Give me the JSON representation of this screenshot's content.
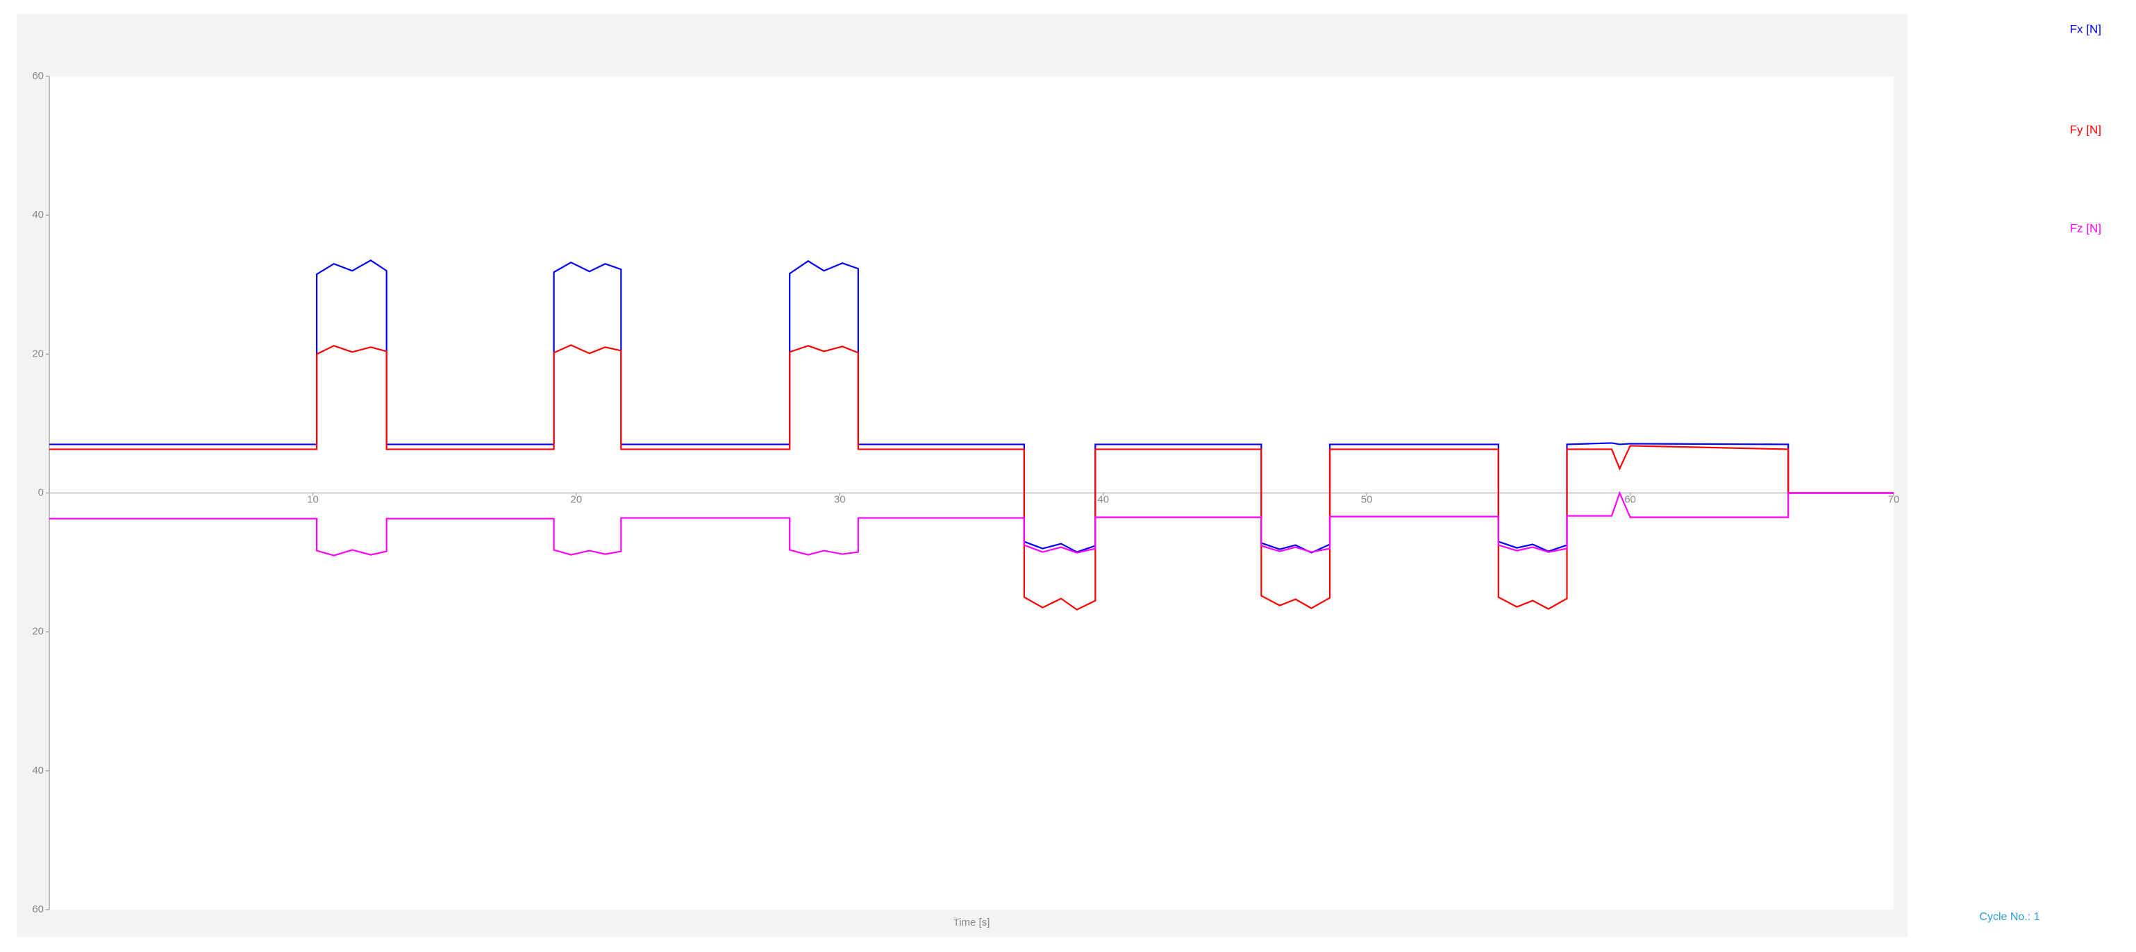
{
  "chart_data": {
    "type": "line",
    "xlabel": "Time [s]",
    "annotation": "Cycle No.: 1",
    "x": [
      0,
      10.15,
      10.15,
      10.8,
      11.5,
      12.2,
      12.8,
      12.8,
      19.15,
      19.15,
      19.8,
      20.5,
      21.1,
      21.7,
      21.7,
      28.1,
      28.1,
      28.8,
      29.4,
      30.1,
      30.7,
      30.7,
      37.0,
      37.0,
      37.7,
      38.4,
      39.0,
      39.7,
      39.7,
      46.0,
      46.0,
      46.7,
      47.3,
      47.9,
      48.6,
      48.6,
      55.0,
      55.0,
      55.7,
      56.3,
      56.9,
      57.6,
      57.6,
      59.3,
      59.6,
      60.0,
      66.0,
      66.0,
      70
    ],
    "series": [
      {
        "name": "Fx [N]",
        "color": "#0000ff",
        "values": [
          7,
          7,
          31.5,
          33,
          32,
          33.5,
          32,
          7,
          7,
          31.8,
          33.2,
          31.9,
          33,
          32.2,
          7,
          7,
          31.6,
          33.4,
          32,
          33.1,
          32.3,
          7,
          7,
          -7,
          -8,
          -7.3,
          -8.5,
          -7.6,
          7,
          7,
          -7.2,
          -8.1,
          -7.5,
          -8.6,
          -7.4,
          7,
          7,
          -7,
          -7.9,
          -7.4,
          -8.4,
          -7.5,
          7,
          7.2,
          7,
          7.1,
          7,
          0,
          0
        ]
      },
      {
        "name": "Fy [N]",
        "color": "#ff0000",
        "values": [
          6.3,
          6.3,
          20,
          21.2,
          20.3,
          21,
          20.4,
          6.3,
          6.3,
          20.2,
          21.3,
          20.1,
          21,
          20.5,
          6.3,
          6.3,
          20.3,
          21.2,
          20.4,
          21.1,
          20.2,
          6.3,
          6.3,
          -15,
          -16.5,
          -15.2,
          -16.8,
          -15.5,
          6.3,
          6.3,
          -14.8,
          -16.2,
          -15.3,
          -16.6,
          -15.1,
          6.3,
          6.3,
          -15,
          -16.4,
          -15.5,
          -16.7,
          -15.2,
          6.3,
          6.3,
          3.5,
          6.8,
          6.3,
          0,
          0
        ]
      },
      {
        "name": "Fz [N]",
        "color": "#ff00ff",
        "values": [
          -3.7,
          -3.7,
          -8.3,
          -9,
          -8.2,
          -8.9,
          -8.4,
          -3.7,
          -3.7,
          -8.2,
          -8.9,
          -8.3,
          -8.8,
          -8.4,
          -3.6,
          -3.6,
          -8.2,
          -8.9,
          -8.3,
          -8.8,
          -8.5,
          -3.6,
          -3.6,
          -7.5,
          -8.5,
          -7.8,
          -8.6,
          -8,
          -3.5,
          -3.5,
          -7.6,
          -8.4,
          -7.8,
          -8.5,
          -8,
          -3.4,
          -3.4,
          -7.5,
          -8.3,
          -7.8,
          -8.5,
          -8,
          -3.3,
          -3.3,
          0,
          -3.5,
          -3.5,
          0,
          0
        ]
      }
    ],
    "xlim": [
      0,
      70
    ],
    "xticks": [
      10,
      20,
      30,
      40,
      50,
      60,
      70
    ],
    "ylim": [
      -60,
      60
    ],
    "yticks": [
      60,
      40,
      20,
      0,
      {
        "value": -20,
        "label": "20"
      },
      {
        "value": -40,
        "label": "40"
      },
      {
        "value": -60,
        "label": "60"
      }
    ],
    "legend": "right"
  }
}
